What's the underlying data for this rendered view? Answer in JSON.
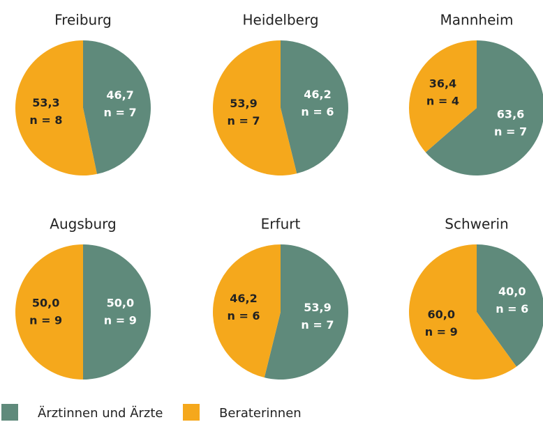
{
  "chart_data": [
    {
      "type": "pie",
      "title": "Freiburg",
      "categories": [
        "Ärztinnen und Ärzte",
        "Beraterinnen"
      ],
      "values": [
        46.7,
        53.3
      ],
      "value_labels": [
        "46,7",
        "53,3"
      ],
      "n_labels": [
        "n = 7",
        "n = 8"
      ],
      "colors": [
        "#5f8a7b",
        "#f5a81c"
      ]
    },
    {
      "type": "pie",
      "title": "Heidelberg",
      "categories": [
        "Ärztinnen und Ärzte",
        "Beraterinnen"
      ],
      "values": [
        46.2,
        53.9
      ],
      "value_labels": [
        "46,2",
        "53,9"
      ],
      "n_labels": [
        "n = 6",
        "n = 7"
      ],
      "colors": [
        "#5f8a7b",
        "#f5a81c"
      ]
    },
    {
      "type": "pie",
      "title": "Mannheim",
      "categories": [
        "Ärztinnen und Ärzte",
        "Beraterinnen"
      ],
      "values": [
        63.6,
        36.4
      ],
      "value_labels": [
        "63,6",
        "36,4"
      ],
      "n_labels": [
        "n = 7",
        "n = 4"
      ],
      "colors": [
        "#5f8a7b",
        "#f5a81c"
      ]
    },
    {
      "type": "pie",
      "title": "Augsburg",
      "categories": [
        "Ärztinnen und Ärzte",
        "Beraterinnen"
      ],
      "values": [
        50.0,
        50.0
      ],
      "value_labels": [
        "50,0",
        "50,0"
      ],
      "n_labels": [
        "n = 9",
        "n = 9"
      ],
      "colors": [
        "#5f8a7b",
        "#f5a81c"
      ]
    },
    {
      "type": "pie",
      "title": "Erfurt",
      "categories": [
        "Ärztinnen und Ärzte",
        "Beraterinnen"
      ],
      "values": [
        53.9,
        46.2
      ],
      "value_labels": [
        "53,9",
        "46,2"
      ],
      "n_labels": [
        "n = 7",
        "n = 6"
      ],
      "colors": [
        "#5f8a7b",
        "#f5a81c"
      ]
    },
    {
      "type": "pie",
      "title": "Schwerin",
      "categories": [
        "Ärztinnen und Ärzte",
        "Beraterinnen"
      ],
      "values": [
        40.0,
        60.0
      ],
      "value_labels": [
        "40,0",
        "60,0"
      ],
      "n_labels": [
        "n = 6",
        "n = 9"
      ],
      "colors": [
        "#5f8a7b",
        "#f5a81c"
      ]
    }
  ]
}
